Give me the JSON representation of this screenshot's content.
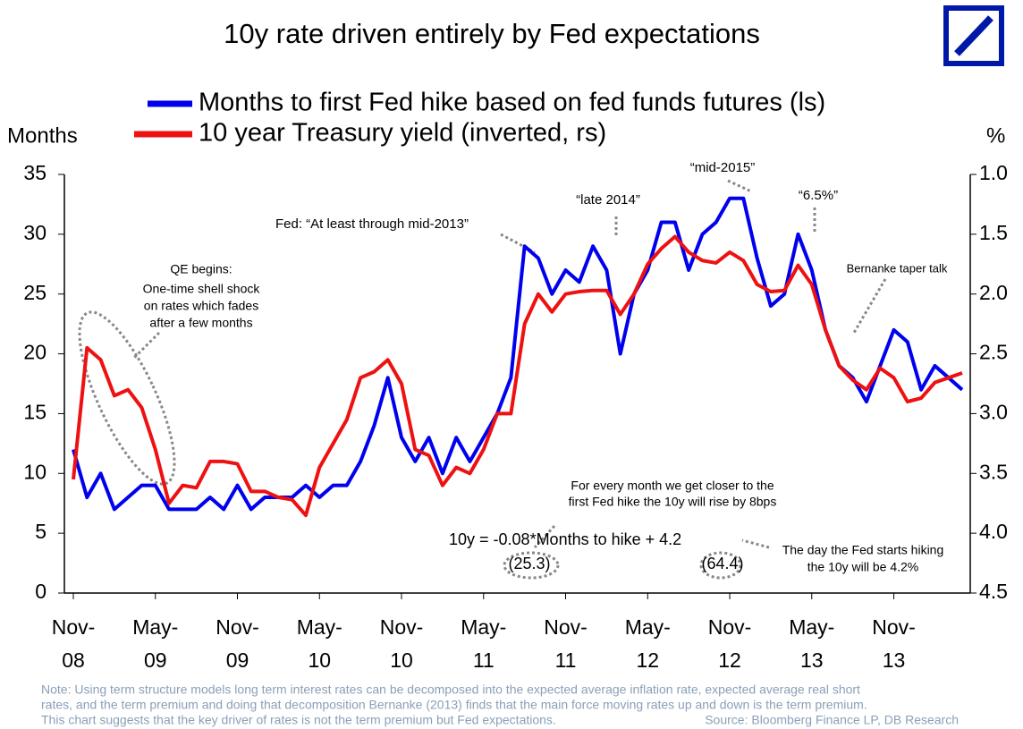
{
  "chart_data": {
    "type": "line",
    "title": "10y rate driven entirely by Fed expectations",
    "y_label": "Months",
    "y2_label": "%",
    "categories": [
      "Nov-08",
      null,
      null,
      null,
      null,
      null,
      "May-09",
      null,
      null,
      null,
      null,
      null,
      "Nov-09",
      null,
      null,
      null,
      null,
      null,
      "May-10",
      null,
      null,
      null,
      null,
      null,
      "Nov-10",
      null,
      null,
      null,
      null,
      null,
      "May-11",
      null,
      null,
      null,
      null,
      null,
      "Nov-11",
      null,
      null,
      null,
      null,
      null,
      "May-12",
      null,
      null,
      null,
      null,
      null,
      "Nov-12",
      null,
      null,
      null,
      null,
      null,
      "May-13",
      null,
      null,
      null,
      null,
      null,
      "Nov-13",
      null,
      null,
      null,
      null,
      null
    ],
    "series": [
      {
        "name": "Months to first Fed hike based on fed funds futures (ls)",
        "color": "#0000ee",
        "values": [
          12,
          8,
          10,
          7,
          8,
          9,
          9,
          7,
          7,
          7,
          8,
          7,
          9,
          7,
          8,
          8,
          8,
          9,
          8,
          9,
          9,
          11,
          14,
          18,
          13,
          11,
          13,
          10,
          13,
          11,
          13,
          15,
          18,
          29,
          28,
          25,
          27,
          26,
          29,
          27,
          20,
          25,
          27,
          31,
          31,
          27,
          30,
          31,
          33,
          33,
          28,
          24,
          25,
          30,
          27,
          22,
          19,
          18,
          16,
          19,
          22,
          21,
          17,
          19,
          18,
          17
        ]
      },
      {
        "name": "10 year Treasury yield (inverted, rs)",
        "color": "#ee1111",
        "axis": "y2",
        "values": [
          3.55,
          2.45,
          2.55,
          2.85,
          2.8,
          2.95,
          3.3,
          3.75,
          3.6,
          3.62,
          3.4,
          3.4,
          3.42,
          3.65,
          3.65,
          3.7,
          3.72,
          3.85,
          3.45,
          3.25,
          3.05,
          2.7,
          2.65,
          2.55,
          2.75,
          3.3,
          3.35,
          3.6,
          3.45,
          3.5,
          3.3,
          3.0,
          3.0,
          2.25,
          2.0,
          2.15,
          2.0,
          1.98,
          1.97,
          1.97,
          2.17,
          2.0,
          1.75,
          1.62,
          1.52,
          1.65,
          1.72,
          1.74,
          1.65,
          1.72,
          1.92,
          1.98,
          1.97,
          1.76,
          1.92,
          2.3,
          2.6,
          2.72,
          2.8,
          2.62,
          2.7,
          2.9,
          2.87,
          2.74,
          2.7,
          2.66
        ]
      }
    ],
    "ylim": [
      0,
      35
    ],
    "yticks": [
      0,
      5,
      10,
      15,
      20,
      25,
      30,
      35
    ],
    "y2lim": [
      4.5,
      1.0
    ],
    "y2ticks": [
      {
        "value": 1,
        "label": "1.0"
      },
      1.5,
      {
        "value": 2,
        "label": "2.0"
      },
      2.5,
      {
        "value": 3,
        "label": "3.0"
      },
      3.5,
      {
        "value": 4,
        "label": "4.0"
      },
      4.5
    ],
    "annotations": [
      {
        "text": "QE begins:"
      },
      {
        "text": "One-time shell shock"
      },
      {
        "text": "on rates which fades"
      },
      {
        "text": "after a few months"
      },
      {
        "text": "Fed: “At least through mid-2013”"
      },
      {
        "text": "“late 2014”"
      },
      {
        "text": "“mid-2015”"
      },
      {
        "text": "“6.5%”"
      },
      {
        "text": "Bernanke taper talk"
      },
      {
        "text": "For every month we get closer to the"
      },
      {
        "text": "first Fed hike the 10y will rise by 8bps"
      },
      {
        "text": "10y = -0.08*Months to hike + 4.2"
      },
      {
        "text": "(25.3)"
      },
      {
        "text": "(64.4)"
      },
      {
        "text": "The day the Fed starts hiking"
      },
      {
        "text": "the 10y will be 4.2%"
      }
    ],
    "note": [
      "Note: Using term structure models long term interest rates can be decomposed into the expected average inflation rate, expected average real short",
      "rates, and the term premium and doing that decomposition Bernanke (2013) finds that the main force moving rates up and down is the term premium.",
      "This chart suggests that the key driver of rates is not the term premium but Fed expectations."
    ],
    "source": "Source: Bloomberg Finance LP, DB Research"
  }
}
